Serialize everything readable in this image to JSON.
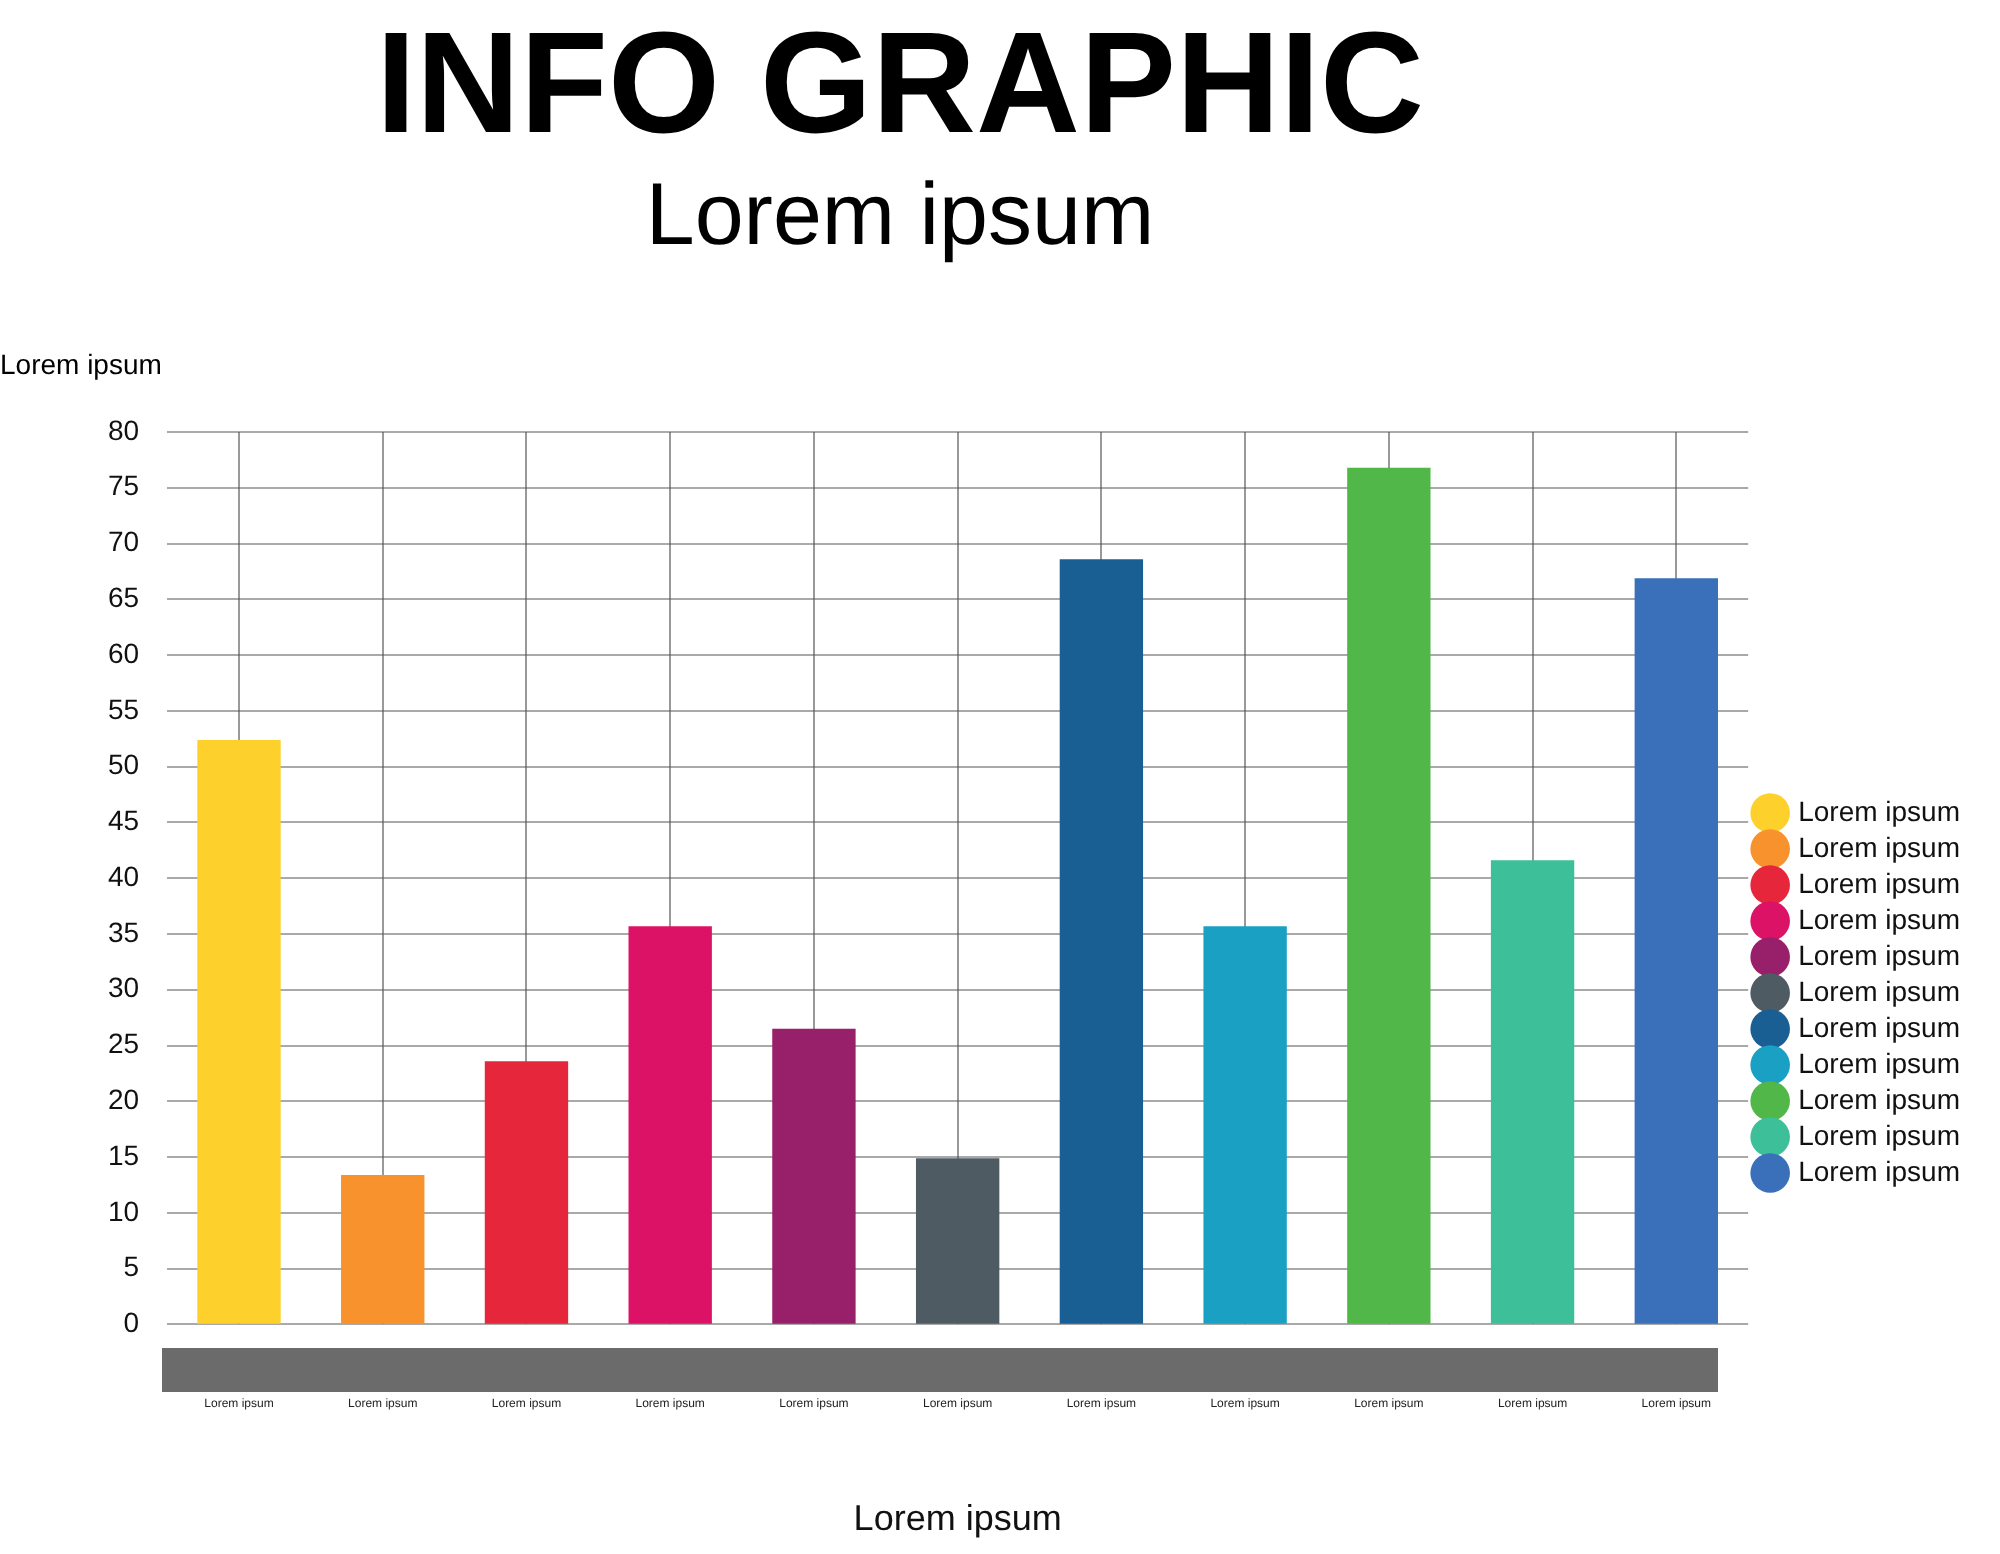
{
  "chart_data": {
    "type": "bar",
    "title": "INFO GRAPHIC",
    "subtitle": "Lorem ipsum",
    "xlabel": "Lorem ipsum",
    "ylabel": "Lorem ipsum",
    "categories": [
      "Lorem ipsum",
      "Lorem ipsum",
      "Lorem ipsum",
      "Lorem ipsum",
      "Lorem ipsum",
      "Lorem ipsum",
      "Lorem ipsum",
      "Lorem ipsum",
      "Lorem ipsum",
      "Lorem ipsum",
      "Lorem ipsum"
    ],
    "series": [
      {
        "name": "Lorem ipsum",
        "color": "#fdd02c",
        "values": [
          52.4,
          null,
          null,
          null,
          null,
          null,
          null,
          null,
          null,
          null,
          null
        ]
      },
      {
        "name": "Lorem ipsum",
        "color": "#f7922d",
        "values": [
          null,
          13.4,
          null,
          null,
          null,
          null,
          null,
          null,
          null,
          null,
          null
        ]
      },
      {
        "name": "Lorem ipsum",
        "color": "#e6273b",
        "values": [
          null,
          null,
          23.6,
          null,
          null,
          null,
          null,
          null,
          null,
          null,
          null
        ]
      },
      {
        "name": "Lorem ipsum",
        "color": "#dc1266",
        "values": [
          null,
          null,
          null,
          35.7,
          null,
          null,
          null,
          null,
          null,
          null,
          null
        ]
      },
      {
        "name": "Lorem ipsum",
        "color": "#981f6a",
        "values": [
          null,
          null,
          null,
          null,
          26.5,
          null,
          null,
          null,
          null,
          null,
          null
        ]
      },
      {
        "name": "Lorem ipsum",
        "color": "#4f5b63",
        "values": [
          null,
          null,
          null,
          null,
          null,
          14.9,
          null,
          null,
          null,
          null,
          null
        ]
      },
      {
        "name": "Lorem ipsum",
        "color": "#195f93",
        "values": [
          null,
          null,
          null,
          null,
          null,
          null,
          68.6,
          null,
          null,
          null,
          null
        ]
      },
      {
        "name": "Lorem ipsum",
        "color": "#1aa0c3",
        "values": [
          null,
          null,
          null,
          null,
          null,
          null,
          null,
          35.7,
          null,
          null,
          null
        ]
      },
      {
        "name": "Lorem ipsum",
        "color": "#51b748",
        "values": [
          null,
          null,
          null,
          null,
          null,
          null,
          null,
          null,
          76.8,
          null,
          null
        ]
      },
      {
        "name": "Lorem ipsum",
        "color": "#3dbf99",
        "values": [
          null,
          null,
          null,
          null,
          null,
          null,
          null,
          null,
          null,
          41.6,
          null
        ]
      },
      {
        "name": "Lorem ipsum",
        "color": "#3a70ba",
        "values": [
          null,
          null,
          null,
          null,
          null,
          null,
          null,
          null,
          null,
          null,
          66.9
        ]
      }
    ],
    "ylim": [
      0,
      80
    ],
    "yticks": [
      0,
      5,
      10,
      15,
      20,
      25,
      30,
      35,
      40,
      45,
      50,
      55,
      60,
      65,
      70,
      75,
      80
    ],
    "grid": true,
    "legend": "right"
  }
}
